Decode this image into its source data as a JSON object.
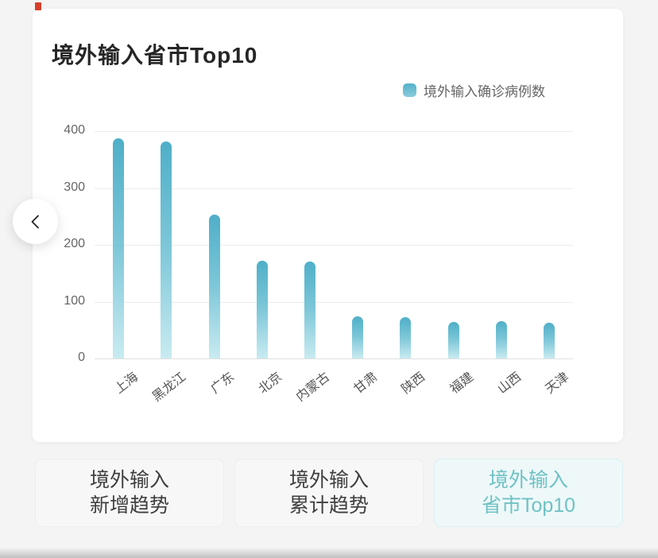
{
  "card": {
    "title": "境外输入省市Top10"
  },
  "legend": {
    "label": "境外输入确诊病例数",
    "swatch_color_top": "#54b1ca",
    "swatch_color_bottom": "#8accdb"
  },
  "chart_data": {
    "type": "bar",
    "title": "境外输入省市Top10",
    "series_name": "境外输入确诊病例数",
    "categories": [
      "上海",
      "黑龙江",
      "广东",
      "北京",
      "内蒙古",
      "甘肃",
      "陕西",
      "福建",
      "山西",
      "天津"
    ],
    "values": [
      387,
      382,
      253,
      172,
      170,
      74,
      73,
      64,
      66,
      63
    ],
    "xlabel": "",
    "ylabel": "",
    "ylim": [
      0,
      400
    ],
    "yticks": [
      0,
      100,
      200,
      300,
      400
    ],
    "grid": true,
    "legend_position": "top-right",
    "bar_color_top": "#4fafc8",
    "bar_color_bottom": "#c9ebf1"
  },
  "nav": {
    "back_icon": "chevron-left-icon"
  },
  "tabs": [
    {
      "line1": "境外输入",
      "line2": "新增趋势",
      "active": false
    },
    {
      "line1": "境外输入",
      "line2": "累计趋势",
      "active": false
    },
    {
      "line1": "境外输入",
      "line2": "省市Top10",
      "active": true
    }
  ],
  "colors": {
    "accent": "#6fc2c4",
    "active_tab_bg": "#eef8f9",
    "marker_red": "#d5402c",
    "grid": "#ececec",
    "text_primary": "#262626",
    "text_secondary": "#666666"
  }
}
